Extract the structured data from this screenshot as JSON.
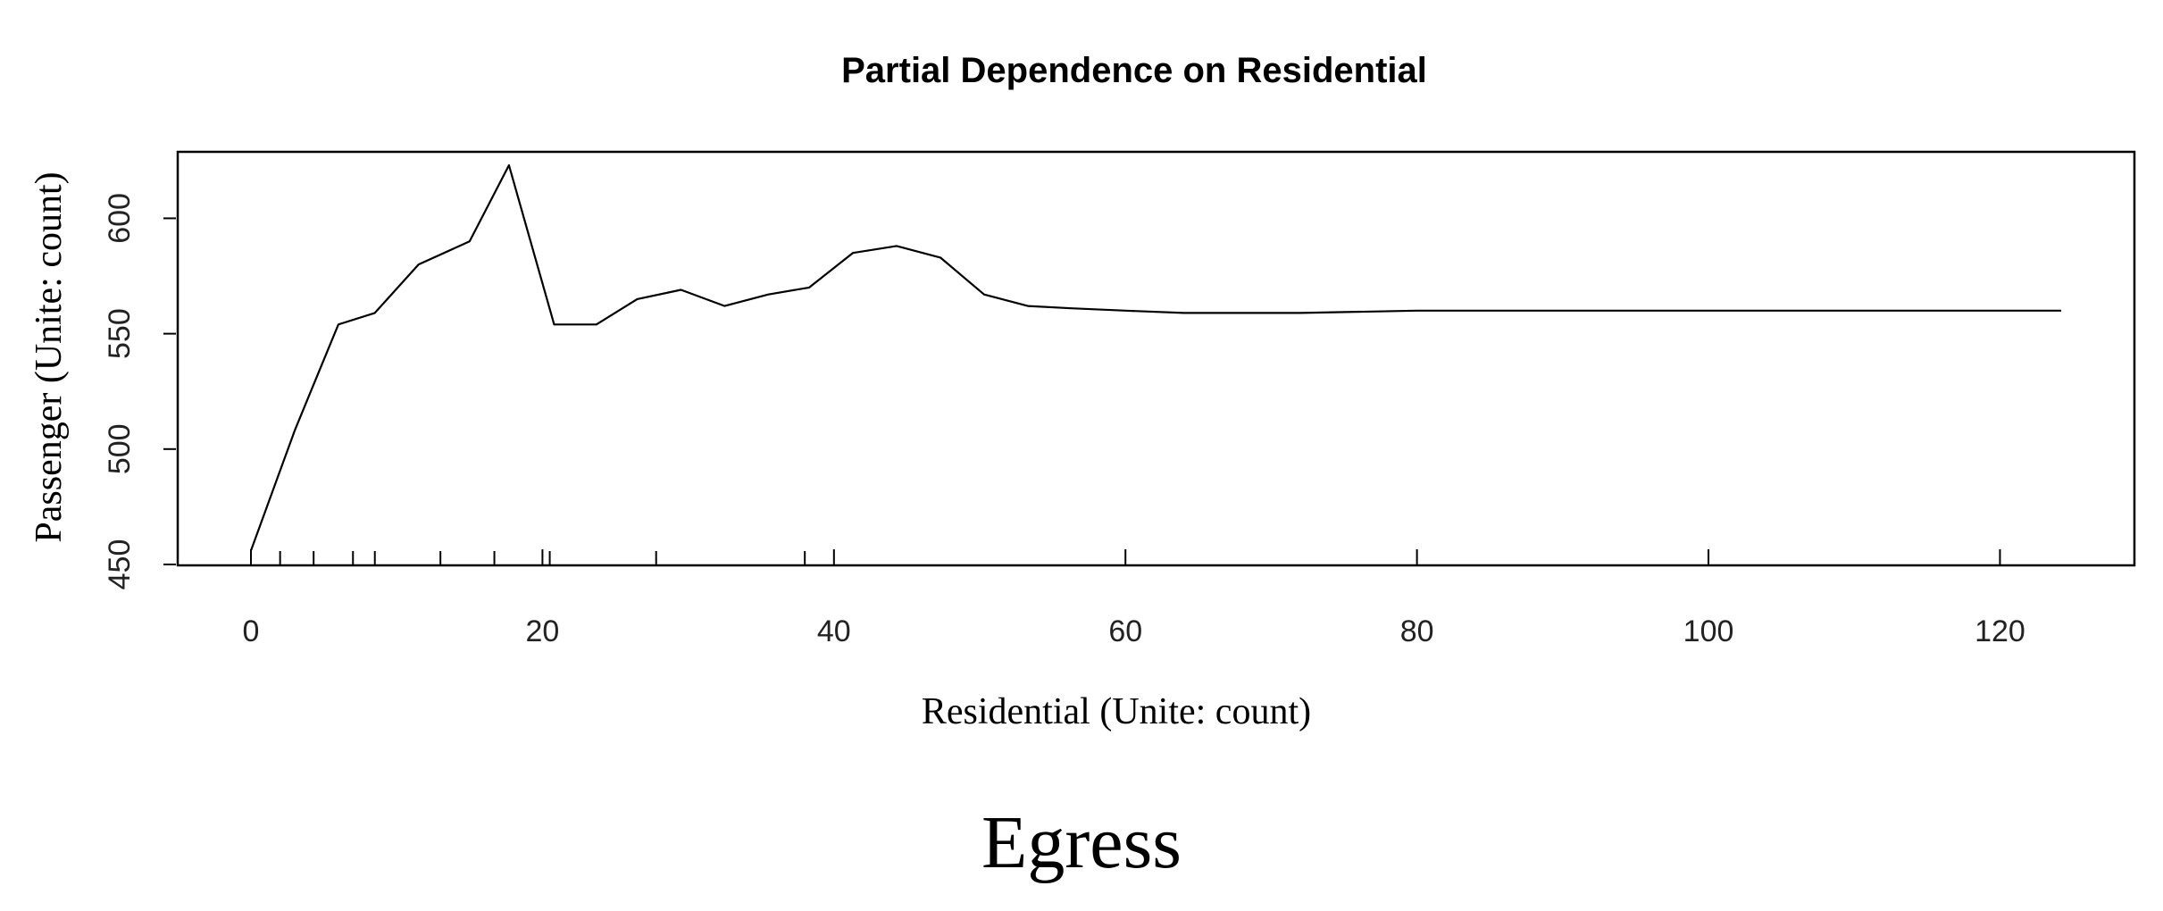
{
  "chart_data": {
    "type": "line",
    "title": "Partial Dependence on Residential",
    "xlabel": "Residential (Unite: count)",
    "ylabel": "Passenger (Unite: count)",
    "xlim": [
      -5,
      126
    ],
    "ylim": [
      450,
      630
    ],
    "xticks": [
      0,
      20,
      40,
      60,
      80,
      100,
      120
    ],
    "yticks": [
      450,
      500,
      550,
      600
    ],
    "grid": false,
    "series": [
      {
        "x": [
          0,
          1.5,
          3,
          4.5,
          6,
          8.5,
          11.5,
          15,
          17.7,
          20.8,
          23.7,
          26.5,
          29.5,
          32.5,
          35.5,
          38.3,
          41.3,
          44.3,
          47.3,
          50.3,
          53.3,
          56.3,
          60,
          64,
          72,
          80,
          124.2
        ],
        "y": [
          456,
          482,
          508,
          531,
          554,
          559,
          580,
          590,
          623,
          554,
          554,
          565,
          569,
          562,
          567,
          570,
          585,
          588,
          583,
          567,
          562,
          561,
          560,
          559,
          559,
          560,
          560
        ]
      }
    ],
    "rug": [
      2,
      4.3,
      7,
      8.5,
      13,
      16.7,
      20.5,
      27.8,
      38
    ]
  },
  "caption": "Egress"
}
